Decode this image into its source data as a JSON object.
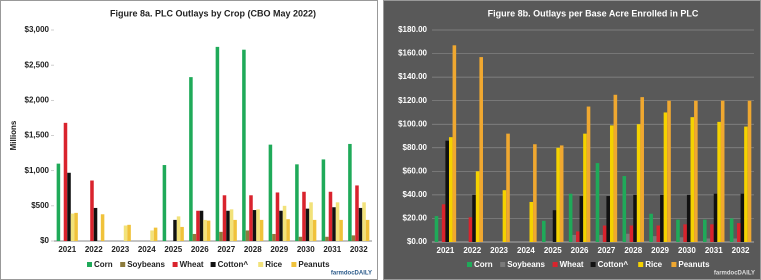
{
  "chart_data": [
    {
      "type": "bar",
      "title": "Figure 8a. PLC Outlays by Crop (CBO May 2022)",
      "y_label": "Millions",
      "annotation": "farmdocDAILY",
      "background": "#ffffff",
      "grid": false,
      "categories": [
        "2021",
        "2022",
        "2023",
        "2024",
        "2025",
        "2026",
        "2027",
        "2028",
        "2029",
        "2030",
        "2031",
        "2032"
      ],
      "ylim": [
        0,
        3000
      ],
      "yticks": [
        {
          "value": 0,
          "label": "$0"
        },
        {
          "value": 500,
          "label": "$500"
        },
        {
          "value": 1000,
          "label": "$1,000"
        },
        {
          "value": 1500,
          "label": "$1,500"
        },
        {
          "value": 2000,
          "label": "$2,000"
        },
        {
          "value": 2500,
          "label": "$2,500"
        },
        {
          "value": 3000,
          "label": "$3,000"
        }
      ],
      "series": [
        {
          "name": "Corn",
          "color": "#1faa59",
          "values": [
            1100,
            0,
            0,
            0,
            1080,
            2330,
            2760,
            2720,
            1370,
            1090,
            1160,
            1380
          ]
        },
        {
          "name": "Soybeans",
          "color": "#8c7b3c",
          "values": [
            0,
            0,
            0,
            0,
            0,
            100,
            130,
            150,
            100,
            60,
            60,
            80
          ]
        },
        {
          "name": "Wheat",
          "color": "#d9232d",
          "values": [
            1680,
            860,
            0,
            0,
            0,
            430,
            650,
            650,
            690,
            700,
            700,
            790
          ]
        },
        {
          "name": "Cotton^",
          "color": "#111111",
          "values": [
            970,
            470,
            0,
            0,
            300,
            430,
            430,
            440,
            430,
            460,
            480,
            470
          ]
        },
        {
          "name": "Rice",
          "color": "#f2e27a",
          "values": [
            390,
            0,
            220,
            150,
            350,
            300,
            450,
            450,
            500,
            550,
            550,
            550
          ]
        },
        {
          "name": "Peanuts",
          "color": "#f0c23a",
          "values": [
            400,
            380,
            230,
            190,
            200,
            290,
            300,
            300,
            310,
            300,
            300,
            300
          ]
        }
      ]
    },
    {
      "type": "bar",
      "title": "Figure 8b. Outlays per Base Acre Enrolled in PLC",
      "annotation": "farmdocDAILY",
      "background": "#595959",
      "grid": true,
      "categories": [
        "2021",
        "2022",
        "2023",
        "2024",
        "2025",
        "2026",
        "2027",
        "2028",
        "2029",
        "2030",
        "2031",
        "2032"
      ],
      "ylim": [
        0,
        180
      ],
      "yticks": [
        {
          "value": 0,
          "label": "$0.00"
        },
        {
          "value": 20,
          "label": "$20.00"
        },
        {
          "value": 40,
          "label": "$40.00"
        },
        {
          "value": 60,
          "label": "$60.00"
        },
        {
          "value": 80,
          "label": "$80.00"
        },
        {
          "value": 100,
          "label": "$100.00"
        },
        {
          "value": 120,
          "label": "$120.00"
        },
        {
          "value": 140,
          "label": "$140.00"
        },
        {
          "value": 160,
          "label": "$160.00"
        },
        {
          "value": 180,
          "label": "$180.00"
        }
      ],
      "series": [
        {
          "name": "Corn",
          "color": "#1faa59",
          "values": [
            22,
            0,
            0,
            0,
            18,
            41,
            67,
            56,
            24,
            19,
            19,
            20
          ]
        },
        {
          "name": "Soybeans",
          "color": "#7a7a7a",
          "values": [
            0,
            0,
            0,
            0,
            0,
            6,
            6,
            7,
            5,
            4,
            3,
            3
          ]
        },
        {
          "name": "Wheat",
          "color": "#d9232d",
          "values": [
            32,
            21,
            0,
            0,
            0,
            9,
            14,
            14,
            14,
            15,
            15,
            16
          ]
        },
        {
          "name": "Cotton^",
          "color": "#111111",
          "values": [
            86,
            40,
            0,
            0,
            27,
            39,
            39,
            40,
            40,
            40,
            41,
            41
          ]
        },
        {
          "name": "Rice",
          "color": "#f5d200",
          "values": [
            89,
            60,
            44,
            34,
            80,
            92,
            99,
            100,
            110,
            106,
            102,
            98
          ]
        },
        {
          "name": "Peanuts",
          "color": "#f0a830",
          "values": [
            167,
            157,
            92,
            83,
            82,
            115,
            125,
            123,
            120,
            120,
            120,
            120
          ]
        }
      ]
    }
  ]
}
